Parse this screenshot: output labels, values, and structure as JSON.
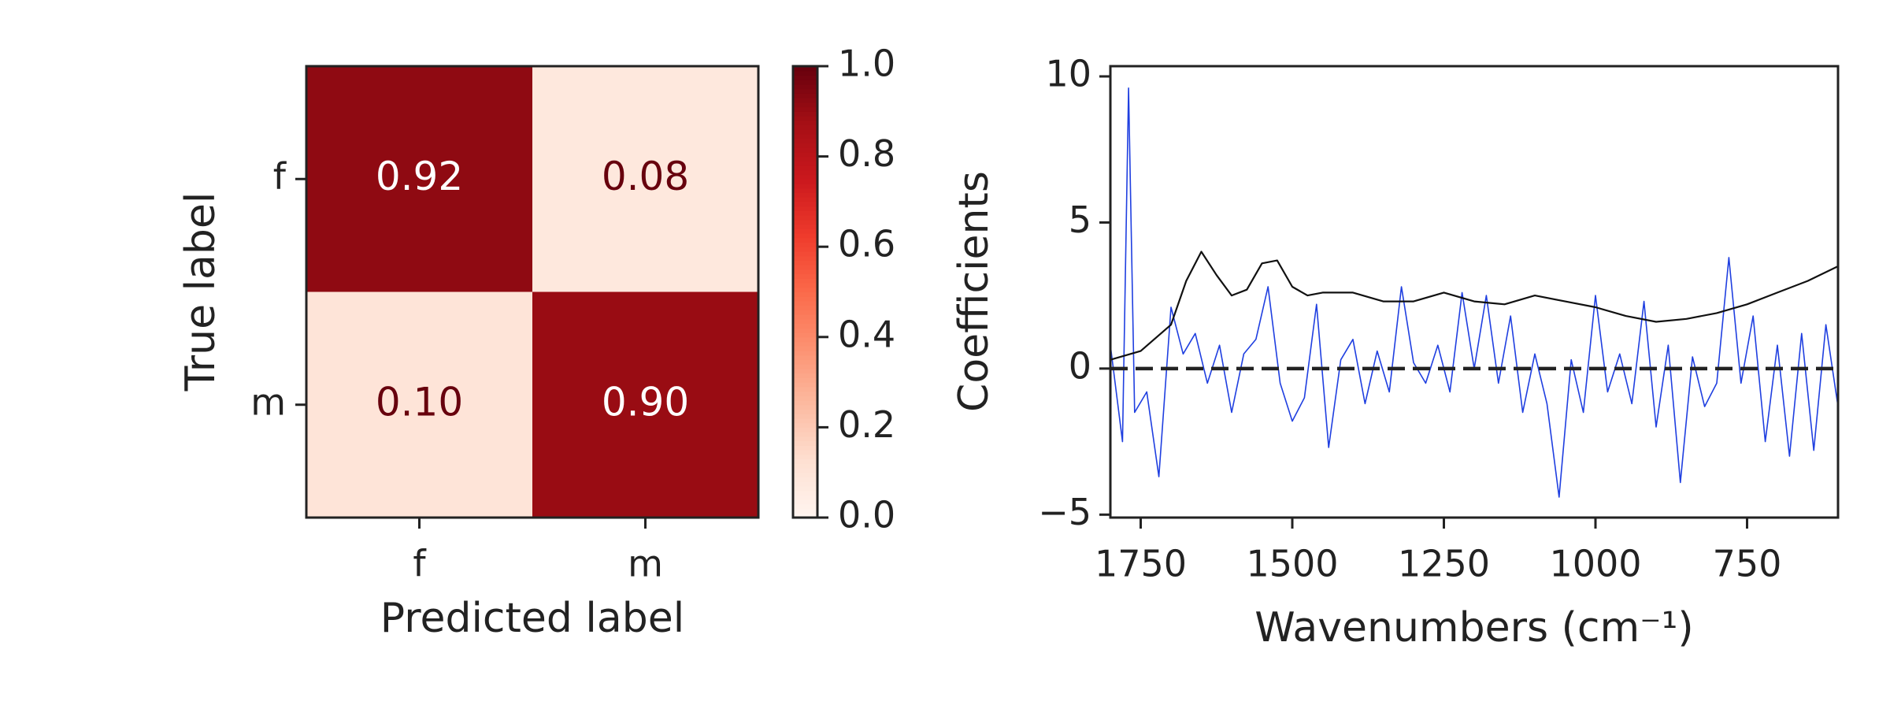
{
  "chart_data": [
    {
      "type": "heatmap",
      "categories": [
        "f",
        "m"
      ],
      "y_categories": [
        "f",
        "m"
      ],
      "values": [
        [
          0.92,
          0.08
        ],
        [
          0.1,
          0.9
        ]
      ],
      "value_labels": [
        [
          "0.92",
          "0.08"
        ],
        [
          "0.10",
          "0.90"
        ]
      ],
      "xlabel": "Predicted label",
      "ylabel": "True label",
      "cmap": "Reds",
      "colorbar": {
        "lim": [
          0,
          1
        ],
        "ticks": [
          {
            "value": 0,
            "label": "0.0"
          },
          0.2,
          0.4,
          0.6,
          0.8,
          {
            "value": 1,
            "label": "1.0"
          }
        ]
      }
    },
    {
      "type": "line",
      "xlabel": "Wavenumbers (cm⁻¹)",
      "ylabel": "Coefficients",
      "xlim": [
        1800,
        600
      ],
      "ylim": [
        -5.1,
        10.35
      ],
      "xticks": [
        1750,
        1500,
        1250,
        1000,
        750
      ],
      "yticks": [
        {
          "value": -5,
          "label": "−5"
        },
        0,
        5,
        10
      ],
      "reference_line": {
        "y": 0,
        "style": "dashed",
        "color": "#222222"
      },
      "series": [
        {
          "color": "#1f3fe0",
          "x": [
            1800,
            1780,
            1770,
            1760,
            1740,
            1720,
            1700,
            1680,
            1660,
            1640,
            1620,
            1600,
            1580,
            1560,
            1540,
            1520,
            1500,
            1480,
            1460,
            1440,
            1420,
            1400,
            1380,
            1360,
            1340,
            1320,
            1300,
            1280,
            1260,
            1240,
            1220,
            1200,
            1180,
            1160,
            1140,
            1120,
            1100,
            1080,
            1060,
            1040,
            1020,
            1000,
            980,
            960,
            940,
            920,
            900,
            880,
            860,
            840,
            820,
            800,
            780,
            760,
            740,
            720,
            700,
            680,
            660,
            640,
            620,
            600
          ],
          "values": [
            0.8,
            -2.5,
            9.6,
            -1.5,
            -0.8,
            -3.7,
            2.1,
            0.5,
            1.2,
            -0.5,
            0.8,
            -1.5,
            0.5,
            1.0,
            2.8,
            -0.5,
            -1.8,
            -1.0,
            2.2,
            -2.7,
            0.3,
            1.0,
            -1.2,
            0.6,
            -0.8,
            2.8,
            0.2,
            -0.5,
            0.8,
            -0.8,
            2.6,
            0.0,
            2.5,
            -0.5,
            1.8,
            -1.5,
            0.5,
            -1.2,
            -4.4,
            0.3,
            -1.5,
            2.5,
            -0.8,
            0.5,
            -1.2,
            2.3,
            -2.0,
            0.8,
            -3.9,
            0.4,
            -1.3,
            -0.5,
            3.8,
            -0.5,
            1.8,
            -2.5,
            0.8,
            -3.0,
            1.2,
            -2.8,
            1.5,
            -1.3
          ]
        },
        {
          "color": "#111111",
          "x": [
            1800,
            1750,
            1700,
            1675,
            1650,
            1625,
            1600,
            1575,
            1550,
            1525,
            1500,
            1475,
            1450,
            1400,
            1350,
            1300,
            1250,
            1200,
            1150,
            1100,
            1050,
            1000,
            950,
            900,
            850,
            800,
            750,
            700,
            650,
            600
          ],
          "values": [
            0.3,
            0.6,
            1.5,
            3.0,
            4.0,
            3.2,
            2.5,
            2.7,
            3.6,
            3.7,
            2.8,
            2.5,
            2.6,
            2.6,
            2.3,
            2.3,
            2.6,
            2.3,
            2.2,
            2.5,
            2.3,
            2.1,
            1.8,
            1.6,
            1.7,
            1.9,
            2.2,
            2.6,
            3.0,
            3.5
          ]
        }
      ]
    }
  ]
}
